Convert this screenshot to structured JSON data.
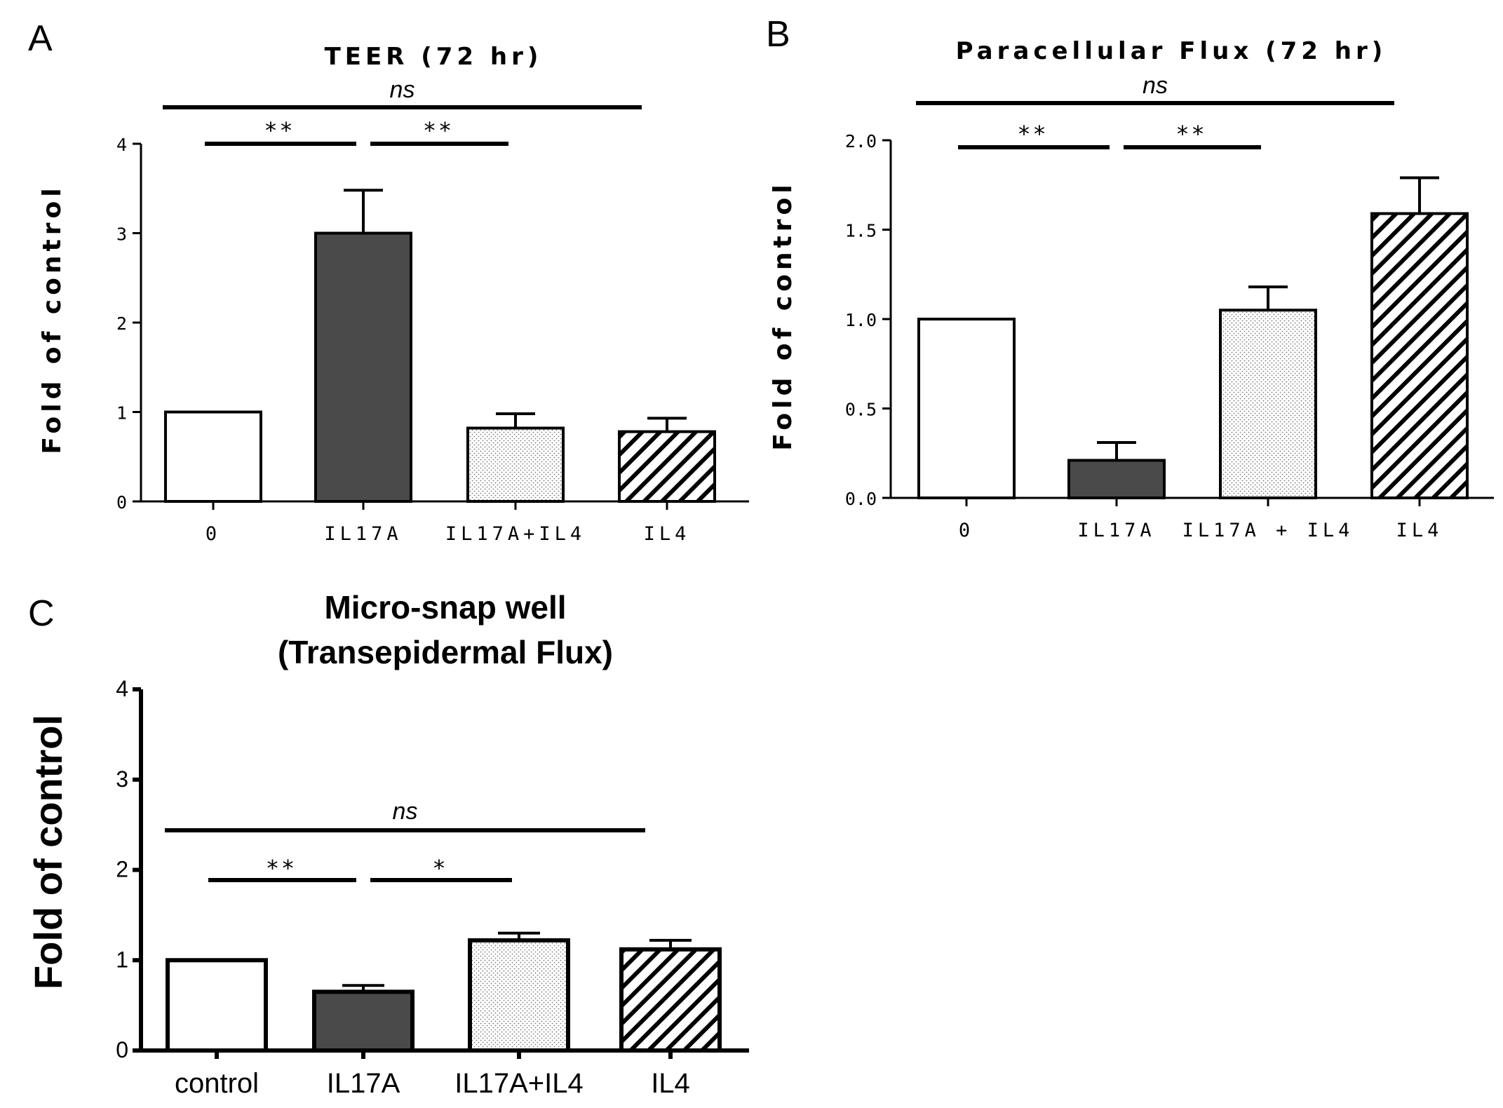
{
  "colors": {
    "axis": "#000000",
    "bar_white": "#ffffff",
    "bar_dark": "#4a4a4a",
    "dot_pattern": "#777777",
    "hatch_pattern": "#000000"
  },
  "chart_data": [
    {
      "type": "bar",
      "panel": "A",
      "title": "TEER (72 hr)",
      "xlabel": "",
      "ylabel": "Fold of control",
      "ylim": [
        0,
        4
      ],
      "yticks": [
        "0",
        "1",
        "2",
        "3",
        "4"
      ],
      "categories": [
        "0",
        "IL17A",
        "IL17A+IL4",
        "IL4"
      ],
      "values": [
        1.0,
        3.0,
        0.82,
        0.78
      ],
      "errors": [
        0,
        0.48,
        0.16,
        0.15
      ],
      "fills": [
        "white",
        "dark",
        "dots",
        "hatch"
      ],
      "significance": [
        {
          "from": 0,
          "to": 3,
          "label": "ns",
          "level": 2
        },
        {
          "from": 0,
          "to": 1,
          "label": "**",
          "level": 1
        },
        {
          "from": 1,
          "to": 2,
          "label": "**",
          "level": 1
        }
      ]
    },
    {
      "type": "bar",
      "panel": "B",
      "title": "Paracellular Flux (72 hr)",
      "xlabel": "",
      "ylabel": "Fold of control",
      "ylim": [
        0,
        2
      ],
      "yticks": [
        "0.0",
        "0.5",
        "1.0",
        "1.5",
        "2.0"
      ],
      "categories": [
        "0",
        "IL17A",
        "IL17A + IL4",
        "IL4"
      ],
      "values": [
        1.0,
        0.21,
        1.05,
        1.59
      ],
      "errors": [
        0,
        0.1,
        0.13,
        0.2
      ],
      "fills": [
        "white",
        "dark",
        "dots",
        "hatch"
      ],
      "significance": [
        {
          "from": 0,
          "to": 3,
          "label": "ns",
          "level": 2
        },
        {
          "from": 0,
          "to": 1,
          "label": "**",
          "level": 1
        },
        {
          "from": 1,
          "to": 2,
          "label": "**",
          "level": 1
        }
      ]
    },
    {
      "type": "bar",
      "panel": "C",
      "title": "Micro-snap well",
      "subtitle": "(Transepidermal Flux)",
      "xlabel": "",
      "ylabel": "Fold of control",
      "ylim": [
        0,
        4
      ],
      "yticks": [
        "0",
        "1",
        "2",
        "3",
        "4"
      ],
      "categories": [
        "control",
        "IL17A",
        "IL17A+IL4",
        "IL4"
      ],
      "values": [
        1.0,
        0.65,
        1.22,
        1.12
      ],
      "errors": [
        0,
        0.07,
        0.08,
        0.1
      ],
      "fills": [
        "white",
        "dark",
        "dots",
        "hatch"
      ],
      "significance": [
        {
          "from": 0,
          "to": 3,
          "label": "ns",
          "level": 2
        },
        {
          "from": 0,
          "to": 1,
          "label": "**",
          "level": 1
        },
        {
          "from": 1,
          "to": 2,
          "label": "*",
          "level": 1
        }
      ]
    }
  ]
}
